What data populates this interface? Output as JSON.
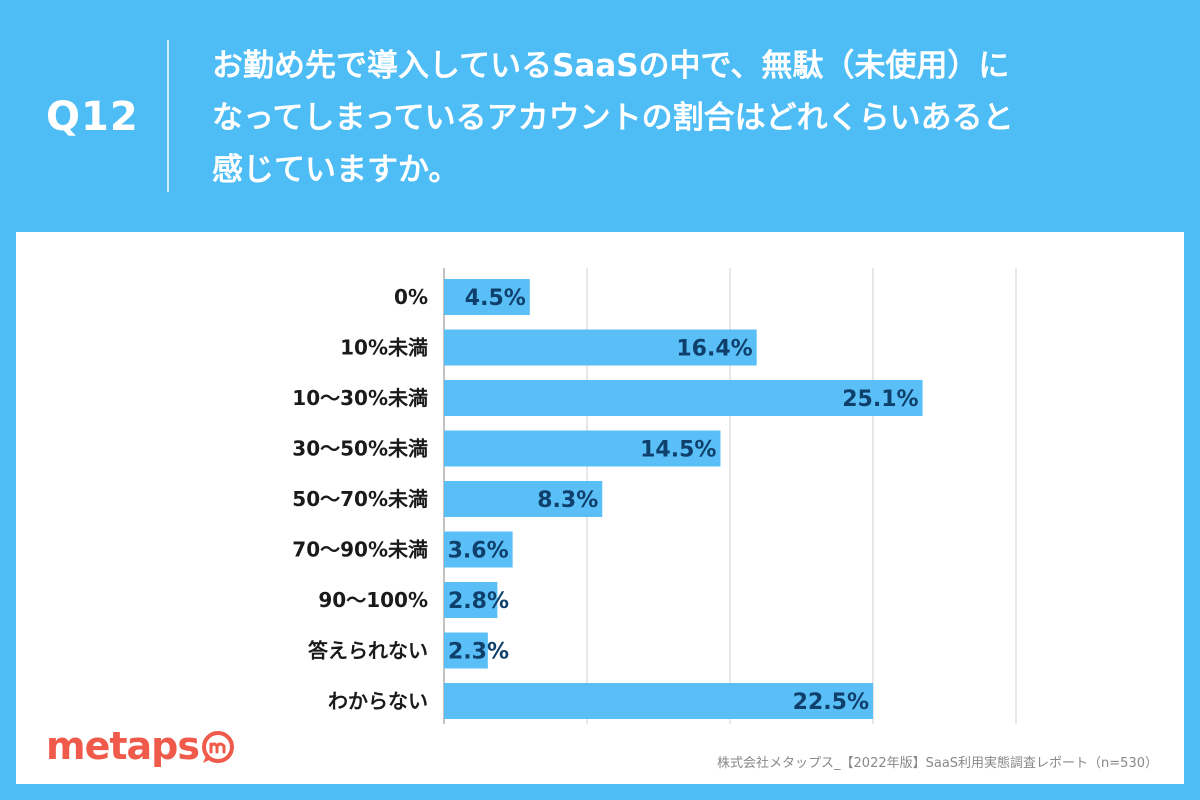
{
  "question": {
    "label": "Q12",
    "text_line1": "お勤め先で導入しているSaaSの中で、無駄（未使用）に",
    "text_line2": "なってしまっているアカウントの割合はどれくらいあると",
    "text_line3": "感じていますか。"
  },
  "chart_data": {
    "type": "bar",
    "orientation": "horizontal",
    "categories": [
      "0%",
      "10%未満",
      "10〜30%未満",
      "30〜50%未満",
      "50〜70%未満",
      "70〜90%未満",
      "90〜100%",
      "答えられない",
      "わからない"
    ],
    "values": [
      4.5,
      16.4,
      25.1,
      14.5,
      8.3,
      3.6,
      2.8,
      2.3,
      22.5
    ],
    "value_labels": [
      "4.5%",
      "16.4%",
      "25.1%",
      "14.5%",
      "8.3%",
      "3.6%",
      "2.8%",
      "2.3%",
      "22.5%"
    ],
    "xlim": [
      0,
      30
    ],
    "grid_step": 7.5,
    "bar_color": "#5bbff7",
    "label_color": "#0f3f6b"
  },
  "branding": {
    "logo_text": "metaps",
    "logo_color": "#ef5a4a",
    "source": "株式会社メタップス_【2022年版】SaaS利用実態調査レポート（n=530）"
  }
}
